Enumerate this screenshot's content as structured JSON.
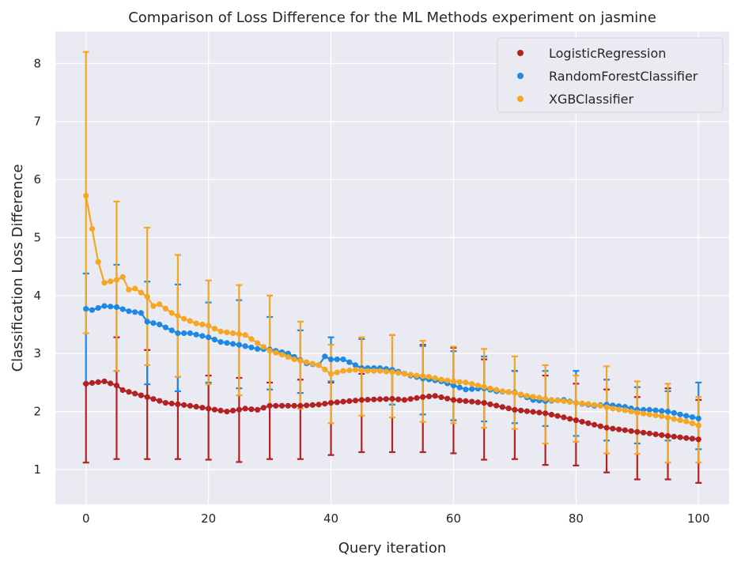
{
  "chart_data": {
    "type": "line",
    "title": "Comparison of Loss Difference for the ML Methods experiment on jasmine",
    "xlabel": "Query iteration",
    "ylabel": "Classification Loss Difference",
    "xlim": [
      -5,
      105
    ],
    "ylim": [
      0.4,
      8.55
    ],
    "xticks": [
      "0",
      "20",
      "40",
      "60",
      "80",
      "100"
    ],
    "yticks": [
      "1",
      "2",
      "3",
      "4",
      "5",
      "6",
      "7",
      "8"
    ],
    "grid": true,
    "legend_position": "top-right",
    "style": {
      "background": "#eaeaf2",
      "grid_color": "#ffffff"
    },
    "error_bar_x": [
      0,
      5,
      10,
      15,
      20,
      25,
      30,
      35,
      40,
      45,
      50,
      55,
      60,
      65,
      70,
      75,
      80,
      85,
      90,
      95,
      100
    ],
    "series": [
      {
        "name": "LogisticRegression",
        "color": "#b22222",
        "anchors": [
          [
            0,
            2.48
          ],
          [
            3,
            2.52
          ],
          [
            5,
            2.45
          ],
          [
            6,
            2.37
          ],
          [
            10,
            2.25
          ],
          [
            13,
            2.15
          ],
          [
            17,
            2.1
          ],
          [
            20,
            2.05
          ],
          [
            23,
            2.0
          ],
          [
            26,
            2.05
          ],
          [
            28,
            2.03
          ],
          [
            30,
            2.1
          ],
          [
            35,
            2.1
          ],
          [
            38,
            2.12
          ],
          [
            40,
            2.15
          ],
          [
            45,
            2.2
          ],
          [
            50,
            2.22
          ],
          [
            52,
            2.2
          ],
          [
            55,
            2.25
          ],
          [
            57,
            2.27
          ],
          [
            60,
            2.2
          ],
          [
            65,
            2.15
          ],
          [
            70,
            2.03
          ],
          [
            75,
            1.97
          ],
          [
            78,
            1.9
          ],
          [
            80,
            1.85
          ],
          [
            85,
            1.72
          ],
          [
            90,
            1.65
          ],
          [
            95,
            1.58
          ],
          [
            100,
            1.52
          ]
        ],
        "error_bars": [
          [
            1.12,
            2.48
          ],
          [
            1.18,
            3.28
          ],
          [
            1.18,
            3.06
          ],
          [
            1.18,
            2.6
          ],
          [
            1.17,
            2.62
          ],
          [
            1.13,
            2.58
          ],
          [
            1.18,
            2.5
          ],
          [
            1.18,
            2.55
          ],
          [
            1.25,
            2.5
          ],
          [
            1.3,
            2.65
          ],
          [
            1.3,
            2.7
          ],
          [
            1.3,
            3.15
          ],
          [
            1.28,
            3.1
          ],
          [
            1.17,
            2.9
          ],
          [
            1.18,
            2.7
          ],
          [
            1.08,
            2.62
          ],
          [
            1.07,
            2.48
          ],
          [
            0.95,
            2.38
          ],
          [
            0.83,
            2.25
          ],
          [
            0.83,
            2.4
          ],
          [
            0.77,
            2.2
          ]
        ]
      },
      {
        "name": "RandomForestClassifier",
        "color": "#1e88e5",
        "anchors": [
          [
            0,
            3.77
          ],
          [
            1,
            3.75
          ],
          [
            3,
            3.82
          ],
          [
            5,
            3.8
          ],
          [
            7,
            3.73
          ],
          [
            9,
            3.7
          ],
          [
            10,
            3.55
          ],
          [
            12,
            3.5
          ],
          [
            15,
            3.35
          ],
          [
            17,
            3.35
          ],
          [
            20,
            3.28
          ],
          [
            22,
            3.2
          ],
          [
            25,
            3.15
          ],
          [
            28,
            3.08
          ],
          [
            30,
            3.07
          ],
          [
            33,
            3.0
          ],
          [
            36,
            2.83
          ],
          [
            38,
            2.8
          ],
          [
            39,
            2.95
          ],
          [
            40,
            2.9
          ],
          [
            42,
            2.9
          ],
          [
            45,
            2.75
          ],
          [
            48,
            2.75
          ],
          [
            50,
            2.72
          ],
          [
            53,
            2.62
          ],
          [
            55,
            2.57
          ],
          [
            58,
            2.52
          ],
          [
            60,
            2.45
          ],
          [
            62,
            2.38
          ],
          [
            65,
            2.4
          ],
          [
            67,
            2.35
          ],
          [
            70,
            2.33
          ],
          [
            73,
            2.2
          ],
          [
            75,
            2.18
          ],
          [
            78,
            2.2
          ],
          [
            80,
            2.15
          ],
          [
            83,
            2.1
          ],
          [
            85,
            2.12
          ],
          [
            88,
            2.08
          ],
          [
            90,
            2.03
          ],
          [
            92,
            2.03
          ],
          [
            95,
            2.0
          ],
          [
            97,
            1.95
          ],
          [
            100,
            1.88
          ]
        ],
        "error_bars": [
          [
            2.48,
            4.38
          ],
          [
            2.7,
            4.53
          ],
          [
            2.47,
            4.24
          ],
          [
            2.35,
            4.19
          ],
          [
            2.5,
            3.88
          ],
          [
            2.4,
            3.92
          ],
          [
            2.38,
            3.63
          ],
          [
            2.32,
            3.4
          ],
          [
            2.52,
            3.28
          ],
          [
            2.2,
            3.25
          ],
          [
            2.12,
            3.32
          ],
          [
            1.95,
            3.13
          ],
          [
            1.85,
            3.04
          ],
          [
            1.83,
            2.95
          ],
          [
            1.8,
            2.7
          ],
          [
            1.75,
            2.7
          ],
          [
            1.58,
            2.7
          ],
          [
            1.5,
            2.55
          ],
          [
            1.45,
            2.42
          ],
          [
            1.5,
            2.35
          ],
          [
            1.35,
            2.5
          ]
        ]
      },
      {
        "name": "XGBClassifier",
        "color": "#f5a623",
        "anchors": [
          [
            0,
            5.72
          ],
          [
            1,
            5.15
          ],
          [
            2,
            4.58
          ],
          [
            3,
            4.22
          ],
          [
            5,
            4.27
          ],
          [
            6,
            4.32
          ],
          [
            7,
            4.1
          ],
          [
            8,
            4.12
          ],
          [
            10,
            3.98
          ],
          [
            11,
            3.82
          ],
          [
            12,
            3.85
          ],
          [
            14,
            3.7
          ],
          [
            16,
            3.6
          ],
          [
            18,
            3.52
          ],
          [
            20,
            3.48
          ],
          [
            22,
            3.38
          ],
          [
            24,
            3.35
          ],
          [
            26,
            3.32
          ],
          [
            28,
            3.18
          ],
          [
            30,
            3.05
          ],
          [
            32,
            2.98
          ],
          [
            34,
            2.9
          ],
          [
            36,
            2.85
          ],
          [
            38,
            2.8
          ],
          [
            40,
            2.65
          ],
          [
            42,
            2.7
          ],
          [
            44,
            2.72
          ],
          [
            46,
            2.7
          ],
          [
            48,
            2.7
          ],
          [
            50,
            2.68
          ],
          [
            52,
            2.65
          ],
          [
            54,
            2.62
          ],
          [
            56,
            2.6
          ],
          [
            58,
            2.55
          ],
          [
            60,
            2.52
          ],
          [
            62,
            2.5
          ],
          [
            64,
            2.45
          ],
          [
            66,
            2.4
          ],
          [
            68,
            2.35
          ],
          [
            70,
            2.32
          ],
          [
            72,
            2.27
          ],
          [
            74,
            2.24
          ],
          [
            76,
            2.2
          ],
          [
            78,
            2.18
          ],
          [
            80,
            2.15
          ],
          [
            82,
            2.13
          ],
          [
            84,
            2.1
          ],
          [
            86,
            2.05
          ],
          [
            88,
            2.02
          ],
          [
            90,
            1.98
          ],
          [
            92,
            1.95
          ],
          [
            94,
            1.92
          ],
          [
            96,
            1.87
          ],
          [
            98,
            1.83
          ],
          [
            100,
            1.76
          ]
        ],
        "error_bars": [
          [
            3.35,
            8.2
          ],
          [
            2.7,
            5.62
          ],
          [
            2.8,
            5.17
          ],
          [
            2.6,
            4.7
          ],
          [
            2.47,
            4.26
          ],
          [
            2.28,
            4.18
          ],
          [
            2.1,
            4.0
          ],
          [
            2.05,
            3.55
          ],
          [
            1.8,
            3.15
          ],
          [
            1.93,
            3.28
          ],
          [
            1.9,
            3.32
          ],
          [
            1.82,
            3.22
          ],
          [
            1.8,
            3.12
          ],
          [
            1.72,
            3.08
          ],
          [
            1.7,
            2.95
          ],
          [
            1.45,
            2.8
          ],
          [
            1.48,
            2.62
          ],
          [
            1.28,
            2.78
          ],
          [
            1.27,
            2.52
          ],
          [
            1.12,
            2.48
          ],
          [
            1.12,
            2.25
          ]
        ]
      }
    ]
  }
}
